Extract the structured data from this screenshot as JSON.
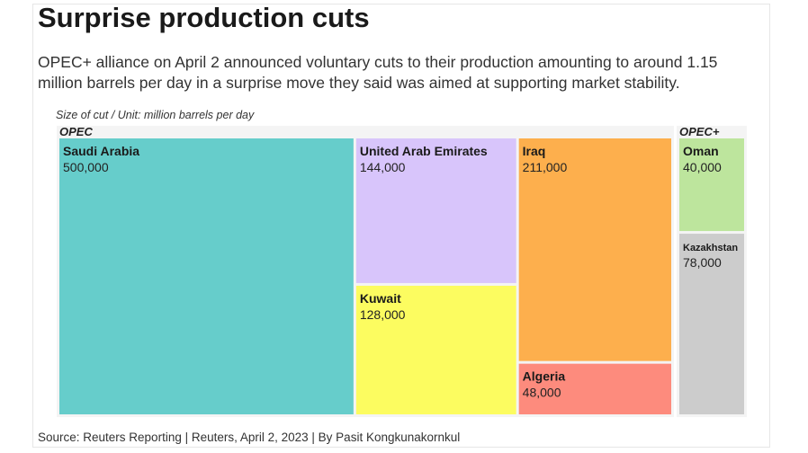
{
  "header": {
    "title": "Surprise production cuts",
    "subtitle": "OPEC+ alliance on April 2 announced voluntary cuts to their production amounting to around 1.15 million barrels per day in a surprise move they said was aimed at supporting market stability."
  },
  "footer": {
    "source": "Source: Reuters Reporting | Reuters, April 2, 2023 | By Pasit Kongkunakornkul"
  },
  "chart_data": {
    "type": "treemap",
    "title": "Size of cut / Unit: million barrels per day",
    "groups": [
      {
        "name": "OPEC",
        "items": [
          {
            "name": "Saudi Arabia",
            "label": "500,000",
            "value": 500000,
            "color": "#66cdcb"
          },
          {
            "name": "United Arab Emirates",
            "label": "144,000",
            "value": 144000,
            "color": "#d8c5fb"
          },
          {
            "name": "Kuwait",
            "label": "128,000",
            "value": 128000,
            "color": "#fcfc60"
          },
          {
            "name": "Iraq",
            "label": "211,000",
            "value": 211000,
            "color": "#fdaf4d"
          },
          {
            "name": "Algeria",
            "label": "48,000",
            "value": 48000,
            "color": "#fd8b7d"
          }
        ]
      },
      {
        "name": "OPEC+",
        "items": [
          {
            "name": "Oman",
            "label": "40,000",
            "value": 40000,
            "color": "#bde59d"
          },
          {
            "name": "Kazakhstan",
            "label": "78,000",
            "value": 78000,
            "color": "#cccccc"
          }
        ]
      }
    ]
  }
}
